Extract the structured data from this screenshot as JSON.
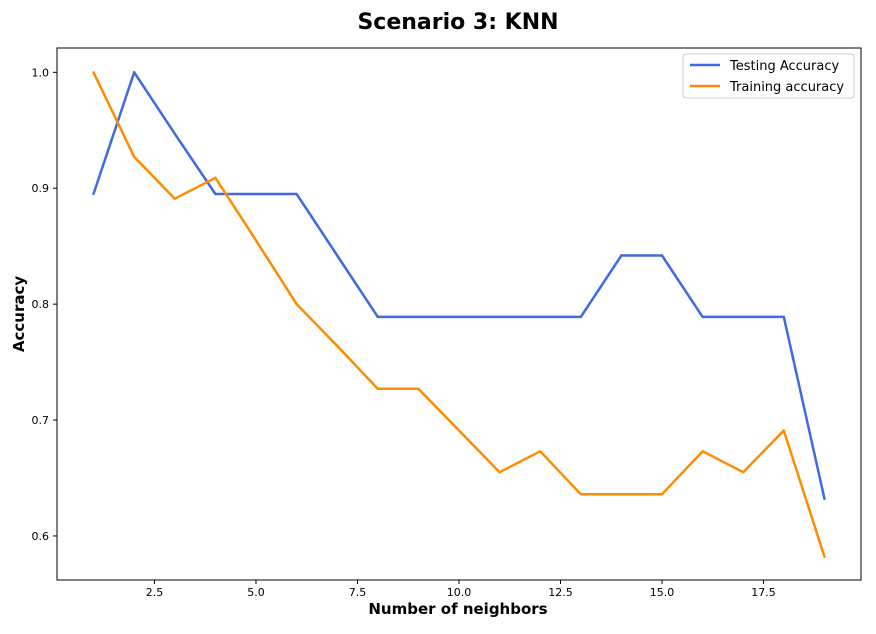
{
  "chart_data": {
    "type": "line",
    "title": "Scenario 3: KNN",
    "xlabel": "Number of neighbors",
    "ylabel": "Accuracy",
    "xlim": [
      0.1,
      19.9
    ],
    "ylim": [
      0.562,
      1.021
    ],
    "x_ticks": [
      2.5,
      5.0,
      7.5,
      10.0,
      12.5,
      15.0,
      17.5
    ],
    "x_tick_labels": [
      "2.5",
      "5.0",
      "7.5",
      "10.0",
      "12.5",
      "15.0",
      "17.5"
    ],
    "y_ticks": [
      0.6,
      0.7,
      0.8,
      0.9,
      1.0
    ],
    "y_tick_labels": [
      "0.6",
      "0.7",
      "0.8",
      "0.9",
      "1.0"
    ],
    "grid": false,
    "legend_position": "top-right",
    "x": [
      1,
      2,
      3,
      4,
      5,
      6,
      7,
      8,
      9,
      10,
      11,
      12,
      13,
      14,
      15,
      16,
      17,
      18,
      19
    ],
    "series": [
      {
        "name": "Testing Accuracy",
        "color": "#4169e1",
        "values": [
          0.895,
          1.0,
          0.947,
          0.895,
          0.895,
          0.895,
          0.842,
          0.789,
          0.789,
          0.789,
          0.789,
          0.789,
          0.789,
          0.842,
          0.842,
          0.789,
          0.789,
          0.789,
          0.632
        ]
      },
      {
        "name": "Training accuracy",
        "color": "#ff8c00",
        "values": [
          1.0,
          0.927,
          0.891,
          0.909,
          0.855,
          0.8,
          0.764,
          0.727,
          0.727,
          0.691,
          0.655,
          0.673,
          0.636,
          0.636,
          0.636,
          0.673,
          0.655,
          0.691,
          0.582
        ]
      }
    ]
  }
}
